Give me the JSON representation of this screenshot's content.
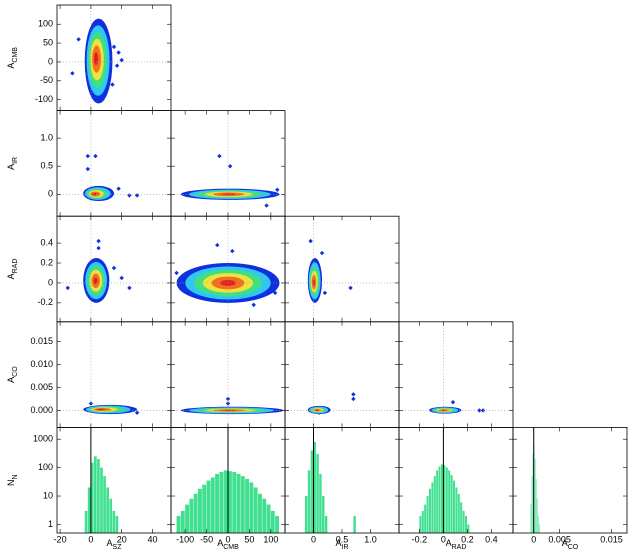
{
  "colors": [
    "#1030e0",
    "#30c8f0",
    "#40e080",
    "#f0e040",
    "#f07020",
    "#e02020"
  ],
  "hist_color": "#40e090",
  "columns": [
    {
      "label": [
        "A",
        "SZ"
      ],
      "xlim": [
        -22,
        52
      ],
      "xticks": [
        -20,
        0,
        20,
        40
      ]
    },
    {
      "label": [
        "A",
        "CMB"
      ],
      "xlim": [
        -133,
        133
      ],
      "xticks": [
        -100,
        -50,
        0,
        50,
        100
      ]
    },
    {
      "label": [
        "A",
        "IR"
      ],
      "xlim": [
        -0.5,
        1.5
      ],
      "xticks": [
        0,
        0.5,
        {
          "value": 1,
          "label": "1.0"
        }
      ]
    },
    {
      "label": [
        "A",
        "RAD"
      ],
      "xlim": [
        -0.37,
        0.58
      ],
      "xticks": [
        -0.2,
        0,
        0.2,
        0.4
      ]
    },
    {
      "label": [
        "A",
        "CO"
      ],
      "xlim": [
        -0.004,
        0.018
      ],
      "xticks": [
        0,
        0.005,
        0.015
      ]
    }
  ],
  "rows": [
    {
      "label": [
        "A",
        "CMB"
      ],
      "ylim": [
        -129,
        151
      ],
      "yticks": [
        -100,
        -50,
        0,
        50,
        100
      ]
    },
    {
      "label": [
        "A",
        "IR"
      ],
      "ylim": [
        -0.39,
        1.49
      ],
      "yticks": [
        0,
        0.5,
        {
          "value": 1,
          "label": "1.0"
        }
      ]
    },
    {
      "label": [
        "A",
        "RAD"
      ],
      "ylim": [
        -0.39,
        0.67
      ],
      "yticks": [
        -0.2,
        0,
        0.2,
        0.4
      ]
    },
    {
      "label": [
        "A",
        "CO"
      ],
      "ylim": [
        -0.0037,
        0.0193
      ],
      "yticks": [
        {
          "value": 0,
          "label": "0.000"
        },
        0.005,
        {
          "value": 0.01,
          "label": "0.010"
        },
        0.015
      ]
    },
    {
      "label": [
        "N",
        "N"
      ],
      "ylim": [
        0.5,
        2600
      ],
      "log": true,
      "yticks": [
        1,
        10,
        100,
        1000
      ]
    }
  ],
  "chart_data": [
    [
      {
        "type": "contour",
        "ref": {
          "x": 0,
          "y": 0
        },
        "extent": {
          "x": [
            -4,
            14
          ],
          "y": [
            -110,
            115
          ]
        },
        "peak": [
          3,
          10
        ],
        "outliers": {
          "x": [
            -12,
            15,
            17,
            18,
            14,
            20,
            -8
          ],
          "y": [
            -30,
            40,
            -10,
            25,
            -60,
            5,
            60
          ]
        }
      }
    ],
    [
      {
        "type": "contour",
        "ref": {
          "x": 0,
          "y": 0
        },
        "extent": {
          "x": [
            -5,
            15
          ],
          "y": [
            -0.12,
            0.15
          ]
        },
        "peak": [
          2,
          0
        ],
        "outliers": {
          "x": [
            -2,
            3,
            -2,
            25,
            30,
            18
          ],
          "y": [
            0.68,
            0.68,
            0.45,
            -0.02,
            -0.02,
            0.1
          ]
        }
      },
      {
        "type": "contour",
        "ref": {
          "x": 0,
          "y": 0
        },
        "extent": {
          "x": [
            -110,
            120
          ],
          "y": [
            -0.1,
            0.1
          ]
        },
        "peak": [
          0,
          0
        ],
        "outliers": {
          "x": [
            -20,
            5,
            90,
            115
          ],
          "y": [
            0.68,
            0.5,
            -0.2,
            0.08
          ]
        }
      }
    ],
    [
      {
        "type": "contour",
        "ref": {
          "x": 0,
          "y": 0
        },
        "extent": {
          "x": [
            -5,
            12
          ],
          "y": [
            -0.2,
            0.25
          ]
        },
        "peak": [
          3,
          0.02
        ],
        "outliers": {
          "x": [
            5,
            5,
            15,
            20,
            25,
            -15
          ],
          "y": [
            0.42,
            0.35,
            0.15,
            0.05,
            -0.05,
            -0.05
          ]
        }
      },
      {
        "type": "contour",
        "ref": {
          "x": 0,
          "y": 0
        },
        "extent": {
          "x": [
            -120,
            120
          ],
          "y": [
            -0.2,
            0.2
          ]
        },
        "peak": [
          0,
          0
        ],
        "outliers": {
          "x": [
            -25,
            10,
            -120,
            110,
            60
          ],
          "y": [
            0.38,
            0.32,
            0.1,
            -0.1,
            -0.22
          ]
        }
      },
      {
        "type": "contour",
        "ref": {
          "x": 0,
          "y": 0
        },
        "extent": {
          "x": [
            -0.1,
            0.15
          ],
          "y": [
            -0.2,
            0.25
          ]
        },
        "peak": [
          0,
          0
        ],
        "outliers": {
          "x": [
            -0.05,
            0.15,
            0.65,
            0.2
          ],
          "y": [
            0.42,
            0.3,
            -0.05,
            -0.1
          ]
        }
      }
    ],
    [
      {
        "type": "contour",
        "ref": {
          "x": 0,
          "y": 0
        },
        "extent": {
          "x": [
            -5,
            30
          ],
          "y": [
            -0.0008,
            0.0012
          ]
        },
        "peak": [
          5,
          0.0002
        ],
        "outliers": {
          "x": [
            0,
            25,
            30
          ],
          "y": [
            0.0015,
            0,
            -0.0005
          ]
        }
      },
      {
        "type": "contour",
        "ref": {
          "x": 0,
          "y": 0
        },
        "extent": {
          "x": [
            -110,
            130
          ],
          "y": [
            -0.0008,
            0.0008
          ]
        },
        "peak": [
          0,
          0
        ],
        "outliers": {
          "x": [
            0,
            0
          ],
          "y": [
            0.0025,
            0.0015
          ]
        }
      },
      {
        "type": "contour",
        "ref": {
          "x": 0,
          "y": 0
        },
        "extent": {
          "x": [
            -0.1,
            0.3
          ],
          "y": [
            -0.0008,
            0.001
          ]
        },
        "peak": [
          0.05,
          0
        ],
        "outliers": {
          "x": [
            0.7,
            0.7,
            0.1
          ],
          "y": [
            0.0035,
            0.0025,
            -0.0005
          ]
        }
      },
      {
        "type": "contour",
        "ref": {
          "x": 0,
          "y": 0
        },
        "extent": {
          "x": [
            -0.12,
            0.15
          ],
          "y": [
            -0.0007,
            0.0008
          ]
        },
        "peak": [
          0,
          0
        ],
        "outliers": {
          "x": [
            0.3,
            0.33,
            0.08
          ],
          "y": [
            0,
            0,
            0.0018
          ]
        }
      }
    ],
    [
      {
        "type": "histogram",
        "marker": 0,
        "bins": [
          -4,
          -2,
          0,
          2,
          4,
          6,
          8,
          10,
          12,
          14,
          16,
          18
        ],
        "counts": [
          3,
          20,
          150,
          250,
          200,
          100,
          50,
          20,
          8,
          3,
          2
        ]
      },
      {
        "type": "histogram",
        "marker": 0,
        "bins": [
          -120,
          -110,
          -100,
          -90,
          -80,
          -70,
          -60,
          -50,
          -40,
          -30,
          -20,
          -10,
          0,
          10,
          20,
          30,
          40,
          50,
          60,
          70,
          80,
          90,
          100,
          110,
          120
        ],
        "counts": [
          2,
          3,
          5,
          8,
          12,
          18,
          25,
          35,
          45,
          60,
          70,
          80,
          75,
          70,
          60,
          50,
          40,
          30,
          20,
          12,
          8,
          5,
          3,
          2
        ]
      },
      {
        "type": "histogram",
        "marker": 0,
        "bins": [
          -0.15,
          -0.1,
          -0.05,
          0,
          0.05,
          0.1,
          0.15,
          0.2,
          0.25,
          0.3,
          0.35,
          0.4,
          0.45,
          0.5,
          0.55,
          0.6,
          0.65,
          0.7,
          0.75
        ],
        "counts": [
          10,
          80,
          400,
          800,
          300,
          60,
          10,
          2,
          0,
          0,
          0,
          0,
          0,
          0,
          0,
          0,
          0,
          2
        ]
      },
      {
        "type": "histogram",
        "marker": 0,
        "bins": [
          -0.2,
          -0.18,
          -0.16,
          -0.14,
          -0.12,
          -0.1,
          -0.08,
          -0.06,
          -0.04,
          -0.02,
          0,
          0.02,
          0.04,
          0.06,
          0.08,
          0.1,
          0.12,
          0.14,
          0.16,
          0.18,
          0.2,
          0.22
        ],
        "counts": [
          2,
          3,
          5,
          10,
          18,
          30,
          50,
          80,
          110,
          130,
          120,
          100,
          80,
          55,
          35,
          20,
          12,
          6,
          3,
          2,
          1
        ]
      },
      {
        "type": "histogram",
        "marker": 0,
        "bins": [
          -0.0006,
          -0.0004,
          -0.0002,
          0,
          0.0002,
          0.0004,
          0.0006,
          0.0008,
          0.001,
          0.0012
        ],
        "counts": [
          5,
          50,
          300,
          600,
          200,
          40,
          8,
          2,
          1
        ]
      }
    ]
  ]
}
